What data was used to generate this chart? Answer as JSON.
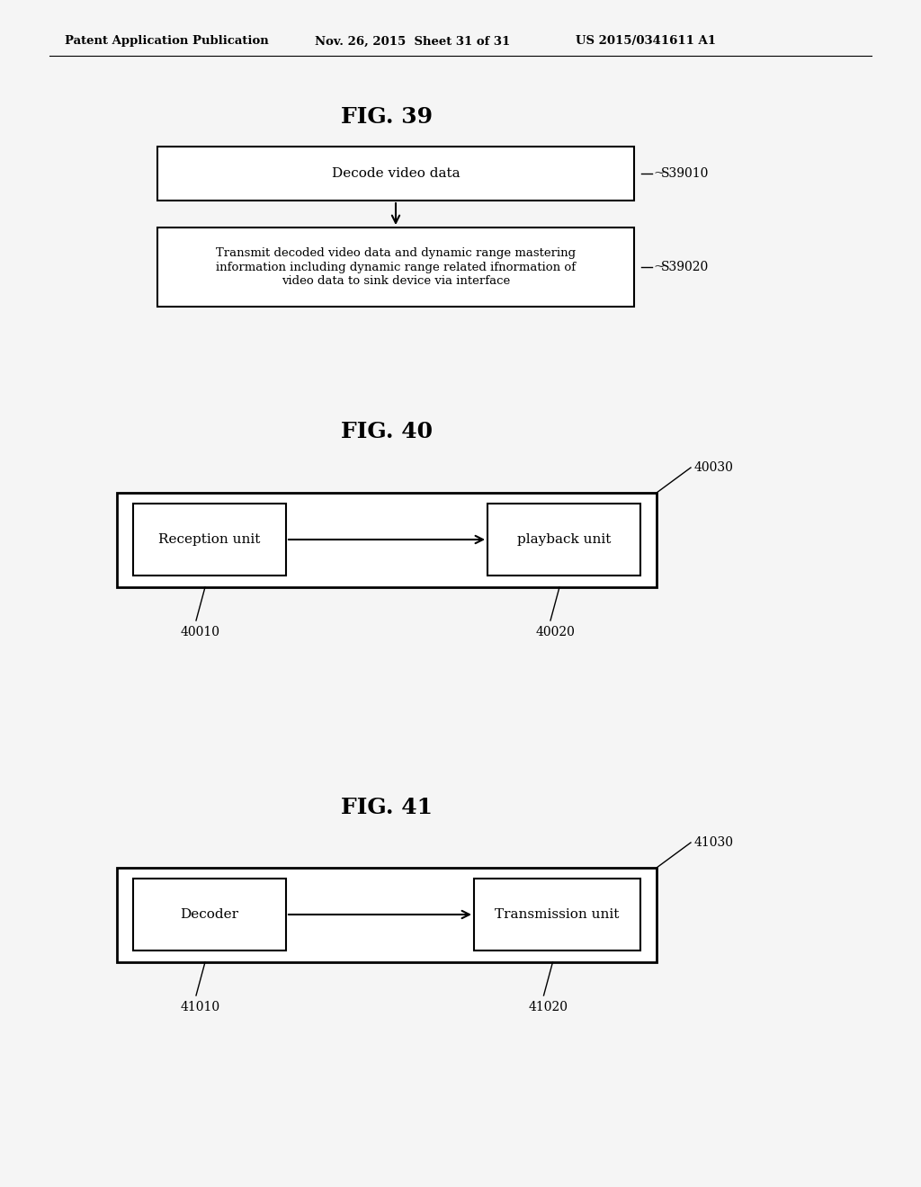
{
  "bg_color": "#f5f5f5",
  "header_left": "Patent Application Publication",
  "header_mid": "Nov. 26, 2015  Sheet 31 of 31",
  "header_right": "US 2015/0341611 A1",
  "fig39_title": "FIG. 39",
  "fig39_box1_text": "Decode video data",
  "fig39_box1_label": "S39010",
  "fig39_box2_text": "Transmit decoded video data and dynamic range mastering\ninformation including dynamic range related ifnormation of\nvideo data to sink device via interface",
  "fig39_box2_label": "S39020",
  "fig40_title": "FIG. 40",
  "fig40_outer_label": "40030",
  "fig40_box1_text": "Reception unit",
  "fig40_box1_label": "40010",
  "fig40_box2_text": "playback unit",
  "fig40_box2_label": "40020",
  "fig41_title": "FIG. 41",
  "fig41_outer_label": "41030",
  "fig41_box1_text": "Decoder",
  "fig41_box1_label": "41010",
  "fig41_box2_text": "Transmission unit",
  "fig41_box2_label": "41020"
}
